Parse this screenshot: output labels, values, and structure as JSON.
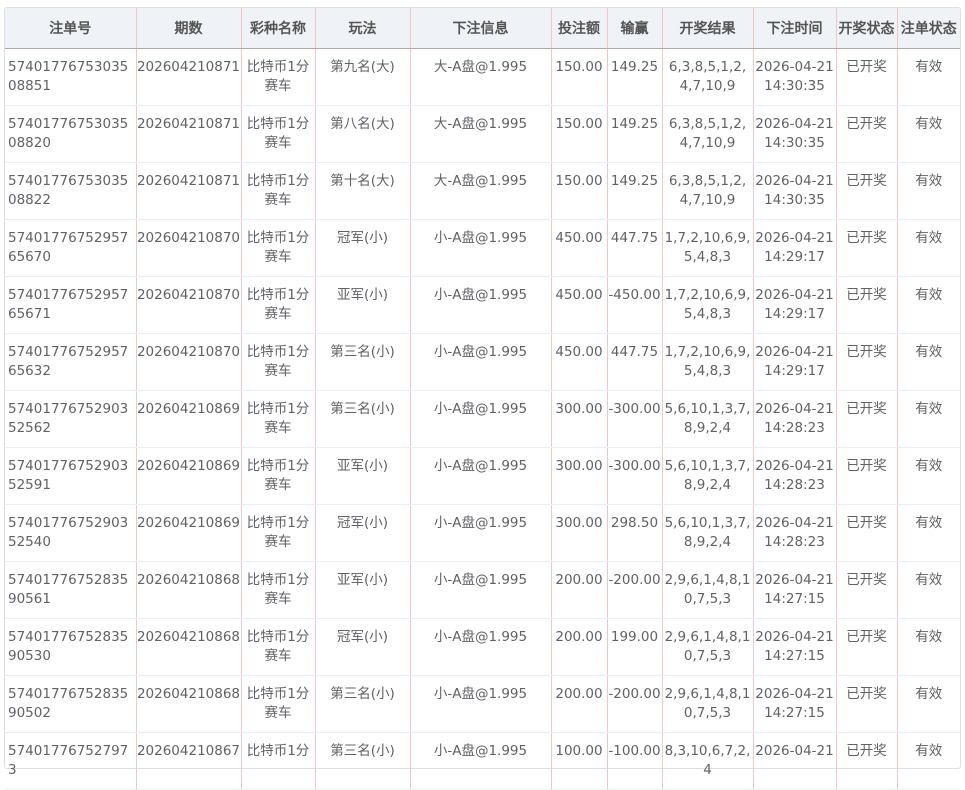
{
  "headers": [
    "注单号",
    "期数",
    "彩种名称",
    "玩法",
    "下注信息",
    "投注额",
    "输赢",
    "开奖结果",
    "下注时间",
    "开奖状态",
    "注单状态"
  ],
  "rows": [
    [
      "5740177675303508851",
      "202604210871",
      "比特币1分赛车",
      "第九名(大)",
      "大-A盘@1.995",
      "150.00",
      "149.25",
      "6,3,8,5,1,2,4,7,10,9",
      "2026-04-21 14:30:35",
      "已开奖",
      "有效"
    ],
    [
      "5740177675303508820",
      "202604210871",
      "比特币1分赛车",
      "第八名(大)",
      "大-A盘@1.995",
      "150.00",
      "149.25",
      "6,3,8,5,1,2,4,7,10,9",
      "2026-04-21 14:30:35",
      "已开奖",
      "有效"
    ],
    [
      "5740177675303508822",
      "202604210871",
      "比特币1分赛车",
      "第十名(大)",
      "大-A盘@1.995",
      "150.00",
      "149.25",
      "6,3,8,5,1,2,4,7,10,9",
      "2026-04-21 14:30:35",
      "已开奖",
      "有效"
    ],
    [
      "5740177675295765670",
      "202604210870",
      "比特币1分赛车",
      "冠军(小)",
      "小-A盘@1.995",
      "450.00",
      "447.75",
      "1,7,2,10,6,9,5,4,8,3",
      "2026-04-21 14:29:17",
      "已开奖",
      "有效"
    ],
    [
      "5740177675295765671",
      "202604210870",
      "比特币1分赛车",
      "亚军(小)",
      "小-A盘@1.995",
      "450.00",
      "-450.00",
      "1,7,2,10,6,9,5,4,8,3",
      "2026-04-21 14:29:17",
      "已开奖",
      "有效"
    ],
    [
      "5740177675295765632",
      "202604210870",
      "比特币1分赛车",
      "第三名(小)",
      "小-A盘@1.995",
      "450.00",
      "447.75",
      "1,7,2,10,6,9,5,4,8,3",
      "2026-04-21 14:29:17",
      "已开奖",
      "有效"
    ],
    [
      "5740177675290352562",
      "202604210869",
      "比特币1分赛车",
      "第三名(小)",
      "小-A盘@1.995",
      "300.00",
      "-300.00",
      "5,6,10,1,3,7,8,9,2,4",
      "2026-04-21 14:28:23",
      "已开奖",
      "有效"
    ],
    [
      "5740177675290352591",
      "202604210869",
      "比特币1分赛车",
      "亚军(小)",
      "小-A盘@1.995",
      "300.00",
      "-300.00",
      "5,6,10,1,3,7,8,9,2,4",
      "2026-04-21 14:28:23",
      "已开奖",
      "有效"
    ],
    [
      "5740177675290352540",
      "202604210869",
      "比特币1分赛车",
      "冠军(小)",
      "小-A盘@1.995",
      "300.00",
      "298.50",
      "5,6,10,1,3,7,8,9,2,4",
      "2026-04-21 14:28:23",
      "已开奖",
      "有效"
    ],
    [
      "5740177675283590561",
      "202604210868",
      "比特币1分赛车",
      "亚军(小)",
      "小-A盘@1.995",
      "200.00",
      "-200.00",
      "2,9,6,1,4,8,10,7,5,3",
      "2026-04-21 14:27:15",
      "已开奖",
      "有效"
    ],
    [
      "5740177675283590530",
      "202604210868",
      "比特币1分赛车",
      "冠军(小)",
      "小-A盘@1.995",
      "200.00",
      "199.00",
      "2,9,6,1,4,8,10,7,5,3",
      "2026-04-21 14:27:15",
      "已开奖",
      "有效"
    ],
    [
      "5740177675283590502",
      "202604210868",
      "比特币1分赛车",
      "第三名(小)",
      "小-A盘@1.995",
      "200.00",
      "-200.00",
      "2,9,6,1,4,8,10,7,5,3",
      "2026-04-21 14:27:15",
      "已开奖",
      "有效"
    ],
    [
      "574017767527973",
      "202604210867",
      "比特币1分",
      "第三名(小)",
      "小-A盘@1.995",
      "100.00",
      "-100.00",
      "8,3,10,6,7,2,4",
      "2026-04-21",
      "已开奖",
      "有效"
    ]
  ]
}
